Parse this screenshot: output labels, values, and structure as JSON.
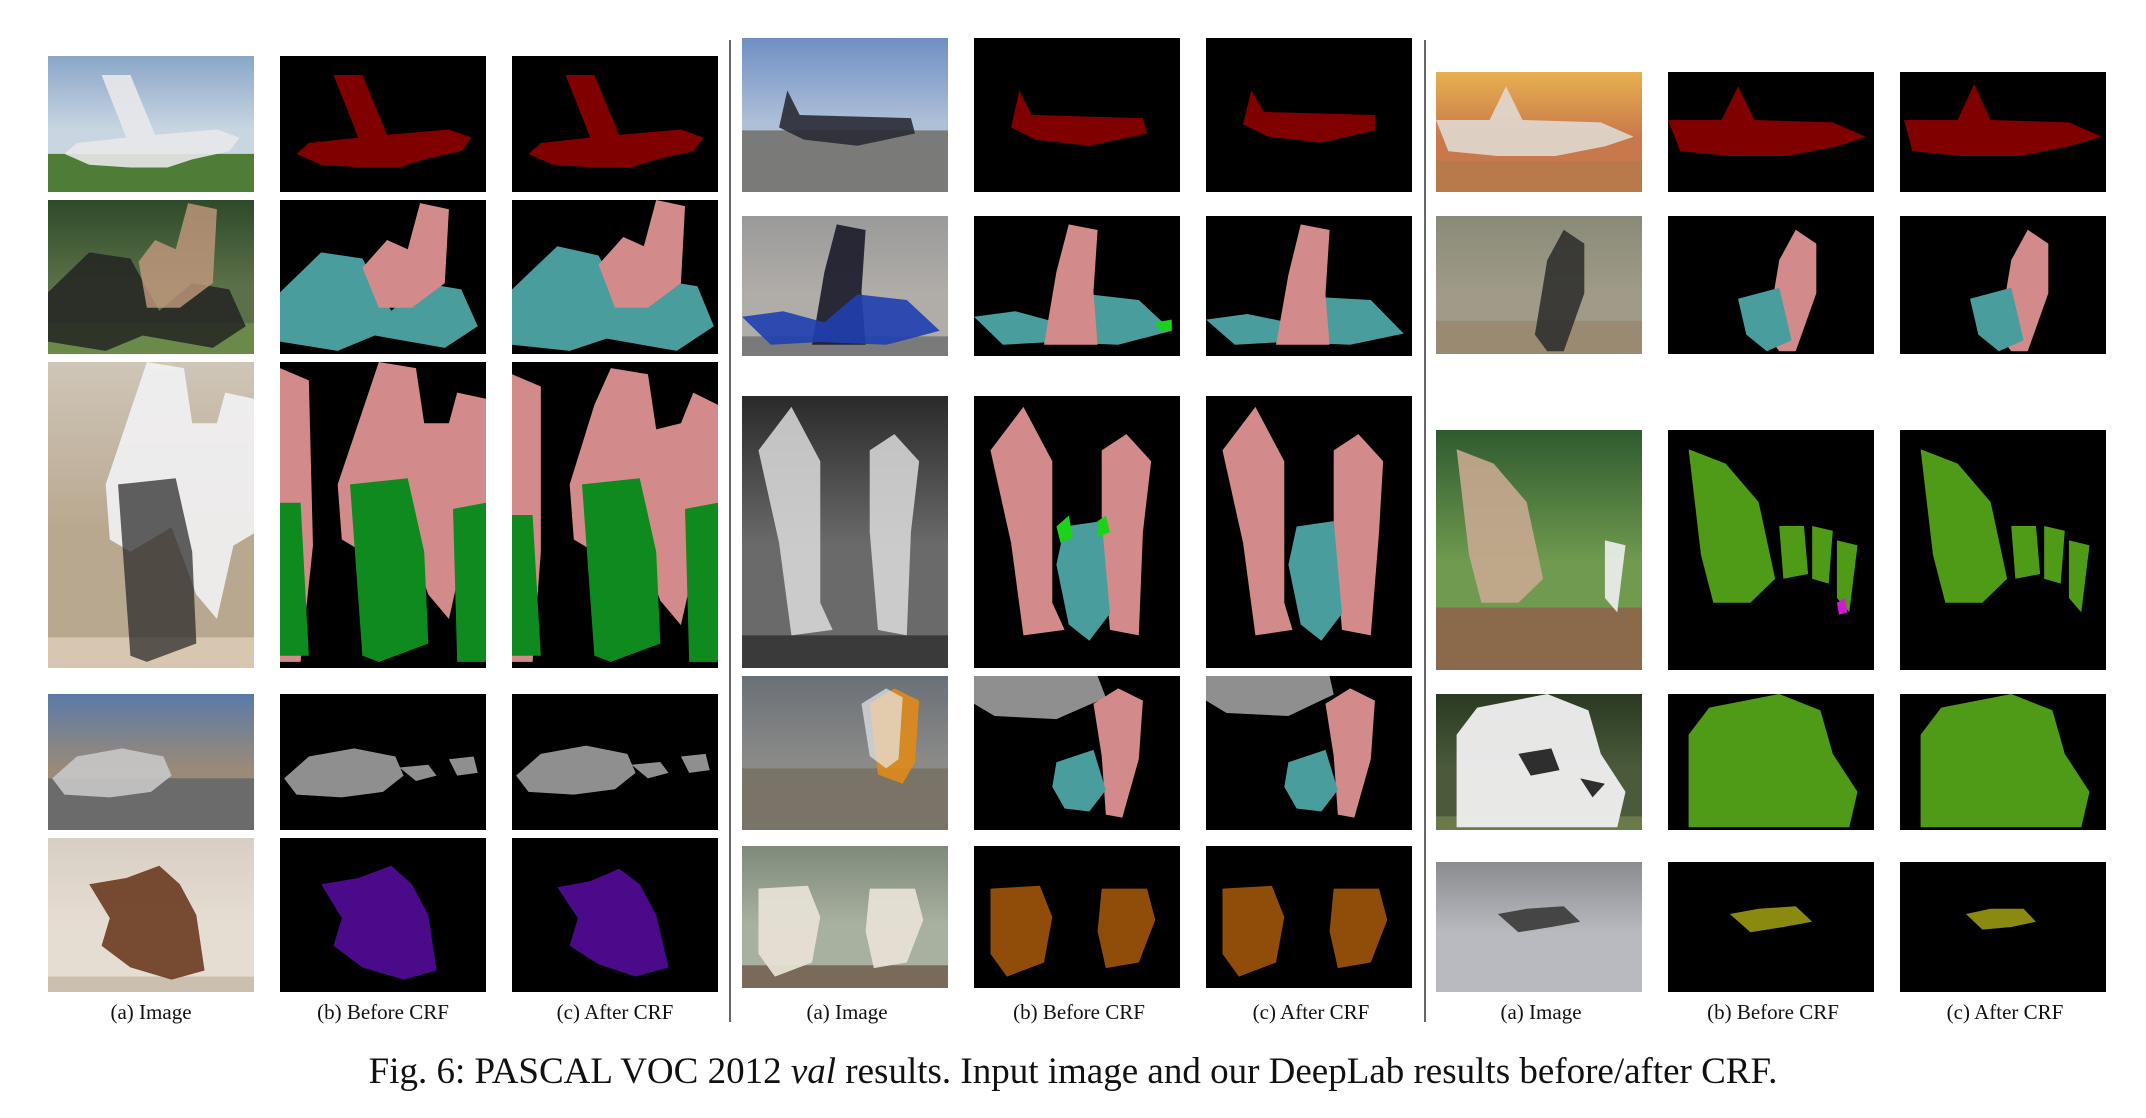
{
  "figure": {
    "column_labels": [
      [
        "(a) Image",
        "(b) Before CRF",
        "(c) After CRF"
      ],
      [
        "(a) Image",
        "(b) Before CRF",
        "(c) After CRF"
      ],
      [
        "(a) Image",
        "(b) Before CRF",
        "(c) After CRF"
      ]
    ],
    "caption": {
      "prefix": "Fig. 6: PASCAL VOC 2012 ",
      "emphasis": "val",
      "suffix": " results. Input image and our DeepLab results before/after CRF."
    },
    "class_colors": {
      "background": "#000000",
      "aeroplane": "#800000",
      "person": "#d28a8a",
      "motorbike": "#4a9d9d",
      "bicycle": "#0f8a1f",
      "car": "#8f8f8f",
      "dog": "#4a0a8a",
      "sheep": "#8f4d09",
      "cow": "#4f9a16",
      "bird": "#8a8a10",
      "green_spot": "#1ad31a",
      "magenta_spot": "#d31ad3"
    },
    "groups": [
      {
        "rows": [
          {
            "image": "airliner-takeoff",
            "classes": [
              "aeroplane"
            ]
          },
          {
            "image": "family-on-trike",
            "classes": [
              "person",
              "motorbike"
            ]
          },
          {
            "image": "cyclists-racing",
            "classes": [
              "person",
              "bicycle"
            ]
          },
          {
            "image": "street-traffic",
            "classes": [
              "car"
            ]
          },
          {
            "image": "puppies-on-blanket",
            "classes": [
              "dog"
            ]
          }
        ]
      },
      {
        "rows": [
          {
            "image": "military-jet-runway",
            "classes": [
              "aeroplane"
            ]
          },
          {
            "image": "rider-on-motorbike",
            "classes": [
              "person",
              "motorbike"
            ]
          },
          {
            "image": "vintage-couple-motorbike",
            "classes": [
              "person",
              "motorbike"
            ]
          },
          {
            "image": "monk-scooter-car",
            "classes": [
              "person",
              "motorbike",
              "car"
            ]
          },
          {
            "image": "two-sheep",
            "classes": [
              "sheep"
            ]
          }
        ]
      },
      {
        "rows": [
          {
            "image": "jet-at-sunset",
            "classes": [
              "aeroplane"
            ]
          },
          {
            "image": "dirt-bike-rider",
            "classes": [
              "person",
              "motorbike"
            ]
          },
          {
            "image": "cattle-herd",
            "classes": [
              "cow"
            ]
          },
          {
            "image": "cow-closeup",
            "classes": [
              "cow"
            ]
          },
          {
            "image": "bird-over-water",
            "classes": [
              "bird"
            ]
          }
        ]
      }
    ]
  }
}
